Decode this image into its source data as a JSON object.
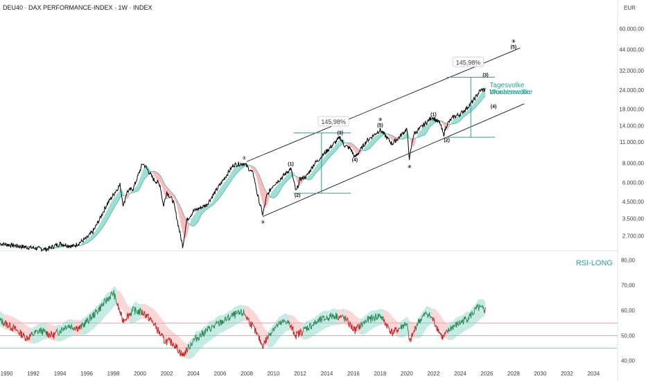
{
  "header": {
    "symbol_line": "DEU40 · DAX PERFORMANCE-INDEX · 1W · INDEX",
    "currency": "EUR"
  },
  "colors": {
    "bull": "#26a69a",
    "bull_fill": "#7fd3c4",
    "bear": "#ef5350",
    "bear_fill": "#f6a6a6",
    "price": "#000000",
    "channel": "#131722",
    "measure": "#2a9d8f",
    "rsi_up": "#2e8b57",
    "rsi_down": "#c62828",
    "level_high": "#f48fb1",
    "level_mid": "#9e9e9e",
    "level_low": "#80cbc4"
  },
  "chart_data": [
    {
      "type": "line",
      "title": "",
      "scale": "log",
      "x_axis": {
        "range": [
          1989.5,
          2035.8
        ],
        "ticks": [
          "1990",
          "1992",
          "1994",
          "1996",
          "1998",
          "2000",
          "2002",
          "2004",
          "2006",
          "2008",
          "2010",
          "2012",
          "2014",
          "2016",
          "2018",
          "2020",
          "2022",
          "2024",
          "2026",
          "2028",
          "2030",
          "2032",
          "2034"
        ]
      },
      "y_axis": {
        "range": [
          2200,
          75000
        ],
        "ticks": [
          "60.000,00",
          "44.000,00",
          "32.000,00",
          "24.000,00",
          "18.000,00",
          "14.000,00",
          "11.000,00",
          "8.000,00",
          "6.000,00",
          "4.500,00",
          "3.500,00",
          "2.700,00"
        ]
      },
      "series": [
        {
          "x": [
            1989.5,
            1991.0,
            1993.0,
            1994.0,
            1995.0,
            1996.0,
            1996.5,
            1997.0,
            1997.5,
            1998.0,
            1998.5,
            1998.75,
            1999.0,
            1999.5,
            2000.2,
            2000.5,
            2001.0,
            2001.5,
            2001.75,
            2002.0,
            2002.5,
            2003.2,
            2003.5,
            2004.0,
            2005.0,
            2006.0,
            2007.0,
            2007.8,
            2008.5,
            2008.8,
            2009.2,
            2009.5,
            2010.0,
            2010.5,
            2011.3,
            2011.7,
            2012.0,
            2012.5,
            2013.0,
            2014.0,
            2015.0,
            2015.3,
            2015.8,
            2016.1,
            2016.5,
            2017.0,
            2018.0,
            2018.9,
            2019.5,
            2020.0,
            2020.2,
            2020.5,
            2021.0,
            2021.9,
            2022.5,
            2022.75,
            2023.0,
            2023.5,
            2024.0,
            2024.5,
            2025.0,
            2025.5,
            2025.9
          ],
          "y": [
            2400,
            2300,
            2200,
            2400,
            2300,
            2600,
            2900,
            3500,
            4300,
            5000,
            5800,
            4200,
            5200,
            5500,
            8000,
            7400,
            6300,
            5800,
            4200,
            5200,
            4500,
            2300,
            3400,
            3900,
            4300,
            5800,
            7800,
            8000,
            6800,
            5000,
            3700,
            4900,
            5800,
            6300,
            7400,
            5200,
            6300,
            6600,
            7800,
            9600,
            11800,
            10500,
            9900,
            8700,
            9700,
            11200,
            13200,
            10700,
            12000,
            13400,
            8500,
            12300,
            13500,
            16000,
            14500,
            12200,
            14300,
            16000,
            16700,
            18300,
            20500,
            23800,
            24200
          ]
        }
      ],
      "annotations": [
        {
          "text": "①",
          "x": 2007.8,
          "y": 8600
        },
        {
          "text": "(1)",
          "x": 2011.3,
          "y": 7900
        },
        {
          "text": "(2)",
          "x": 2011.8,
          "y": 4950
        },
        {
          "text": "②",
          "x": 2009.2,
          "y": 3300
        },
        {
          "text": "145,98%",
          "x": 2014.5,
          "y": 14700
        },
        {
          "text": "(3)",
          "x": 2015.0,
          "y": 12600
        },
        {
          "text": "(4)",
          "x": 2016.1,
          "y": 8400
        },
        {
          "text": "③",
          "x": 2018.0,
          "y": 15300
        },
        {
          "text": "(5)",
          "x": 2018.0,
          "y": 14100
        },
        {
          "text": "④",
          "x": 2020.2,
          "y": 7550
        },
        {
          "text": "(1)",
          "x": 2022.0,
          "y": 16600
        },
        {
          "text": "(2)",
          "x": 2023.0,
          "y": 11300
        },
        {
          "text": "145,98%",
          "x": 2024.6,
          "y": 35800
        },
        {
          "text": "(3)",
          "x": 2025.9,
          "y": 30000
        },
        {
          "text": "(4)",
          "x": 2026.5,
          "y": 18700
        },
        {
          "text": "⑤",
          "x": 2028.0,
          "y": 49500
        },
        {
          "text": "(5)",
          "x": 2028.0,
          "y": 45500
        }
      ],
      "legend": [
        "Tagesvolke",
        "Wochenwolke",
        "Monatswolke"
      ]
    },
    {
      "type": "line",
      "title": "RSI-LONG",
      "y_axis": {
        "range": [
          38,
          82
        ],
        "ticks": [
          "80,00",
          "70,00",
          "60,00",
          "50,00",
          "40,00"
        ]
      },
      "levels": [
        55,
        50,
        45
      ],
      "series": [
        {
          "x": [
            1989.5,
            1990.5,
            1991.5,
            1992.5,
            1993.5,
            1994.5,
            1995.5,
            1996.5,
            1997.5,
            1998.0,
            1998.7,
            1999.5,
            2000.3,
            2001.0,
            2001.8,
            2002.5,
            2003.2,
            2004.0,
            2005.0,
            2006.0,
            2007.0,
            2007.8,
            2008.5,
            2009.2,
            2010.0,
            2011.0,
            2011.7,
            2012.5,
            2013.5,
            2014.5,
            2015.3,
            2016.1,
            2017.0,
            2018.0,
            2018.9,
            2019.5,
            2020.0,
            2020.2,
            2020.8,
            2021.5,
            2022.0,
            2022.7,
            2023.3,
            2024.0,
            2024.8,
            2025.3,
            2025.9
          ],
          "y": [
            56,
            53,
            49,
            52,
            50,
            54,
            53,
            58,
            64,
            67,
            56,
            60,
            59,
            55,
            48,
            47,
            42,
            48,
            52,
            55,
            58,
            59,
            53,
            46,
            53,
            56,
            50,
            53,
            56,
            58,
            57,
            52,
            56,
            58,
            51,
            53,
            55,
            47,
            55,
            59,
            56,
            49,
            53,
            55,
            58,
            61,
            60
          ]
        }
      ]
    }
  ]
}
